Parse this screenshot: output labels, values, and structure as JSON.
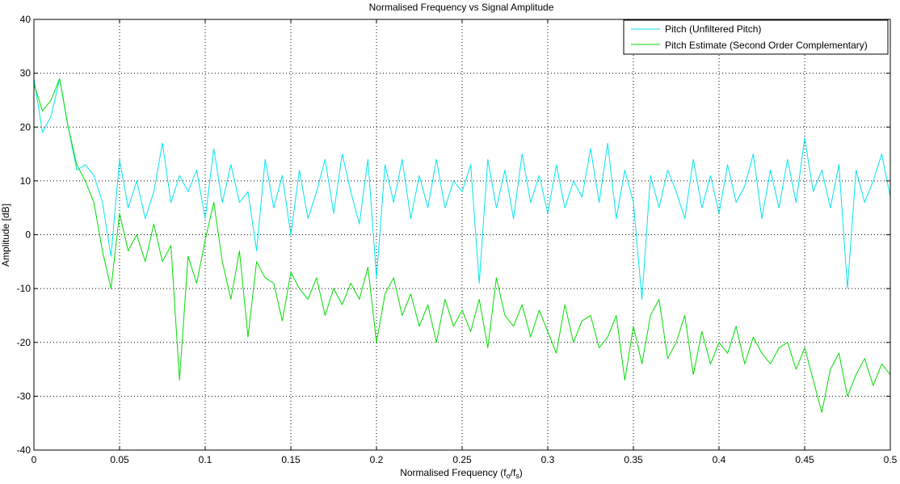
{
  "chart_data": {
    "type": "line",
    "title": "Normalised Frequency vs Signal Amplitude",
    "xlabel": "Normalised Frequency (f",
    "xlabel_sub1": "o",
    "xlabel_mid": "/f",
    "xlabel_sub2": "s",
    "xlabel_end": ")",
    "ylabel": "Amplitude [dB]",
    "xlim": [
      0,
      0.5
    ],
    "ylim": [
      -40,
      40
    ],
    "xticks": [
      0,
      0.05,
      0.1,
      0.15,
      0.2,
      0.25,
      0.3,
      0.35,
      0.4,
      0.45,
      0.5
    ],
    "xtick_labels": [
      "0",
      "0.05",
      "0.1",
      "0.15",
      "0.2",
      "0.25",
      "0.3",
      "0.35",
      "0.4",
      "0.45",
      "0.5"
    ],
    "yticks": [
      -40,
      -30,
      -20,
      -10,
      0,
      10,
      20,
      30,
      40
    ],
    "ytick_labels": [
      "-40",
      "-30",
      "-20",
      "-10",
      "0",
      "10",
      "20",
      "30",
      "40"
    ],
    "grid": true,
    "legend_position": "top-right",
    "series": [
      {
        "name": "Pitch (Unfiltered Pitch)",
        "color": "#00e5ee",
        "x": [
          0,
          0.005,
          0.01,
          0.015,
          0.02,
          0.025,
          0.03,
          0.035,
          0.04,
          0.045,
          0.05,
          0.055,
          0.06,
          0.065,
          0.07,
          0.075,
          0.08,
          0.085,
          0.09,
          0.095,
          0.1,
          0.105,
          0.11,
          0.115,
          0.12,
          0.125,
          0.13,
          0.135,
          0.14,
          0.145,
          0.15,
          0.155,
          0.16,
          0.165,
          0.17,
          0.175,
          0.18,
          0.185,
          0.19,
          0.195,
          0.2,
          0.205,
          0.21,
          0.215,
          0.22,
          0.225,
          0.23,
          0.235,
          0.24,
          0.245,
          0.25,
          0.255,
          0.26,
          0.265,
          0.27,
          0.275,
          0.28,
          0.285,
          0.29,
          0.295,
          0.3,
          0.305,
          0.31,
          0.315,
          0.32,
          0.325,
          0.33,
          0.335,
          0.34,
          0.345,
          0.35,
          0.355,
          0.36,
          0.365,
          0.37,
          0.375,
          0.38,
          0.385,
          0.39,
          0.395,
          0.4,
          0.405,
          0.41,
          0.415,
          0.42,
          0.425,
          0.43,
          0.435,
          0.44,
          0.445,
          0.45,
          0.455,
          0.46,
          0.465,
          0.47,
          0.475,
          0.48,
          0.485,
          0.49,
          0.495,
          0.5
        ],
        "values": [
          29,
          19,
          22,
          29,
          20,
          12,
          13,
          11,
          6,
          -4,
          14,
          5,
          10,
          3,
          8,
          17,
          6,
          11,
          8,
          12,
          3,
          16,
          6,
          13,
          6,
          8,
          -3,
          14,
          5,
          11,
          0,
          12,
          3,
          8,
          14,
          4,
          15,
          8,
          2,
          14,
          -8,
          13,
          6,
          14,
          3,
          11,
          5,
          14,
          5,
          10,
          8,
          13,
          -9,
          14,
          5,
          12,
          3,
          15,
          6,
          11,
          4,
          13,
          5,
          10,
          7,
          16,
          6,
          17,
          3,
          12,
          6,
          -12,
          11,
          5,
          12,
          8,
          3,
          14,
          5,
          11,
          4,
          13,
          6,
          9,
          15,
          3,
          12,
          5,
          14,
          6,
          18,
          8,
          12,
          5,
          13,
          -10,
          12,
          6,
          10,
          15,
          7
        ]
      },
      {
        "name": "Pitch Estimate (Second Order Complementary)",
        "color": "#00dd00",
        "x": [
          0,
          0.005,
          0.01,
          0.015,
          0.02,
          0.025,
          0.03,
          0.035,
          0.04,
          0.045,
          0.05,
          0.055,
          0.06,
          0.065,
          0.07,
          0.075,
          0.08,
          0.085,
          0.09,
          0.095,
          0.1,
          0.105,
          0.11,
          0.115,
          0.12,
          0.125,
          0.13,
          0.135,
          0.14,
          0.145,
          0.15,
          0.155,
          0.16,
          0.165,
          0.17,
          0.175,
          0.18,
          0.185,
          0.19,
          0.195,
          0.2,
          0.205,
          0.21,
          0.215,
          0.22,
          0.225,
          0.23,
          0.235,
          0.24,
          0.245,
          0.25,
          0.255,
          0.26,
          0.265,
          0.27,
          0.275,
          0.28,
          0.285,
          0.29,
          0.295,
          0.3,
          0.305,
          0.31,
          0.315,
          0.32,
          0.325,
          0.33,
          0.335,
          0.34,
          0.345,
          0.35,
          0.355,
          0.36,
          0.365,
          0.37,
          0.375,
          0.38,
          0.385,
          0.39,
          0.395,
          0.4,
          0.405,
          0.41,
          0.415,
          0.42,
          0.425,
          0.43,
          0.435,
          0.44,
          0.445,
          0.45,
          0.455,
          0.46,
          0.465,
          0.47,
          0.475,
          0.48,
          0.485,
          0.49,
          0.495,
          0.5
        ],
        "values": [
          28,
          23,
          25,
          29,
          20,
          13,
          10,
          6,
          -3,
          -10,
          4,
          -3,
          0,
          -5,
          2,
          -5,
          -2,
          -27,
          -4,
          -9,
          -1,
          6,
          -5,
          -12,
          -3,
          -19,
          -5,
          -8,
          -9,
          -16,
          -7,
          -10,
          -12,
          -8,
          -15,
          -10,
          -13,
          -9,
          -12,
          -6,
          -20,
          -11,
          -8,
          -15,
          -11,
          -17,
          -13,
          -20,
          -12,
          -17,
          -14,
          -18,
          -12,
          -21,
          -8,
          -15,
          -17,
          -13,
          -19,
          -14,
          -18,
          -22,
          -13,
          -20,
          -16,
          -15,
          -21,
          -19,
          -15,
          -27,
          -17,
          -24,
          -15,
          -12,
          -23,
          -20,
          -15,
          -26,
          -18,
          -24,
          -20,
          -22,
          -17,
          -24,
          -19,
          -22,
          -24,
          -21,
          -20,
          -25,
          -21,
          -27,
          -33,
          -25,
          -22,
          -30,
          -26,
          -23,
          -28,
          -24,
          -26
        ]
      }
    ]
  }
}
